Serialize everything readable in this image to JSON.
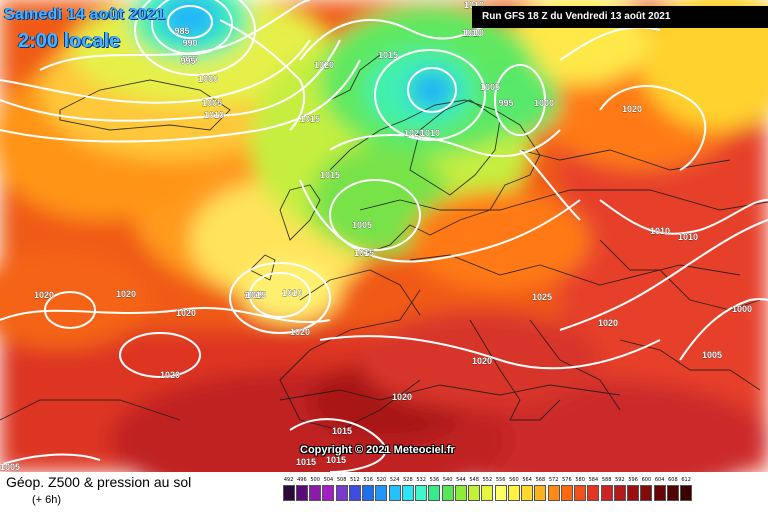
{
  "header": {
    "date": "Samedi 14 août 2021",
    "time": "2:00 locale",
    "run": "Run GFS 18 Z du Vendredi 13 août 2021"
  },
  "copyright": "Copyright © 2021 Meteociel.fr",
  "legend": {
    "title": "Géop. Z500 & pression au sol",
    "subtitle": "(+ 6h)",
    "scale": [
      "492",
      "496",
      "500",
      "504",
      "508",
      "512",
      "516",
      "520",
      "524",
      "528",
      "532",
      "536",
      "540",
      "544",
      "548",
      "552",
      "556",
      "560",
      "564",
      "568",
      "572",
      "576",
      "580",
      "584",
      "588",
      "592",
      "596",
      "600",
      "604",
      "608",
      "612"
    ],
    "colors": [
      "#2b0a3a",
      "#5a0a7a",
      "#8a1ca8",
      "#a41dc5",
      "#7a3ad0",
      "#3c4de0",
      "#1e6ef0",
      "#1f97f7",
      "#25c1fa",
      "#2ee5f5",
      "#3ff7c8",
      "#37ea8a",
      "#57e655",
      "#8cec3a",
      "#c2f13a",
      "#e6f53f",
      "#ffff66",
      "#fff240",
      "#ffd92e",
      "#ffb21f",
      "#ff8a15",
      "#ff6a10",
      "#f4501a",
      "#e23524",
      "#cc2424",
      "#b31a1a",
      "#9a1010",
      "#820a0a",
      "#6a0505",
      "#510202",
      "#3a0000"
    ]
  },
  "isobar_labels": [
    "985",
    "990",
    "995",
    "1000",
    "1005",
    "1010",
    "1015",
    "1020",
    "1025"
  ],
  "map_labels": [
    {
      "text": "985"
    },
    {
      "text": "990"
    },
    {
      "text": "995"
    },
    {
      "text": "995"
    },
    {
      "text": "1000"
    },
    {
      "text": "1005"
    },
    {
      "text": "1010"
    },
    {
      "text": "1015"
    },
    {
      "text": "1015"
    },
    {
      "text": "1015"
    },
    {
      "text": "1020"
    },
    {
      "text": "1010"
    },
    {
      "text": "1010"
    },
    {
      "text": "1005"
    },
    {
      "text": "1010"
    },
    {
      "text": "995"
    },
    {
      "text": "1000"
    },
    {
      "text": "1020"
    },
    {
      "text": "1015"
    },
    {
      "text": "1010"
    },
    {
      "text": "1005"
    },
    {
      "text": "1015"
    },
    {
      "text": "1015"
    },
    {
      "text": "1010"
    },
    {
      "text": "1020"
    },
    {
      "text": "1020"
    },
    {
      "text": "1020"
    },
    {
      "text": "1020"
    },
    {
      "text": "1020"
    },
    {
      "text": "1025"
    },
    {
      "text": "1020"
    },
    {
      "text": "1010"
    },
    {
      "text": "1010"
    },
    {
      "text": "1000"
    },
    {
      "text": "1005"
    },
    {
      "text": "1020"
    },
    {
      "text": "1020"
    },
    {
      "text": "1015"
    },
    {
      "text": "1015"
    },
    {
      "text": "1015"
    },
    {
      "text": "1020"
    },
    {
      "text": "1005"
    }
  ]
}
